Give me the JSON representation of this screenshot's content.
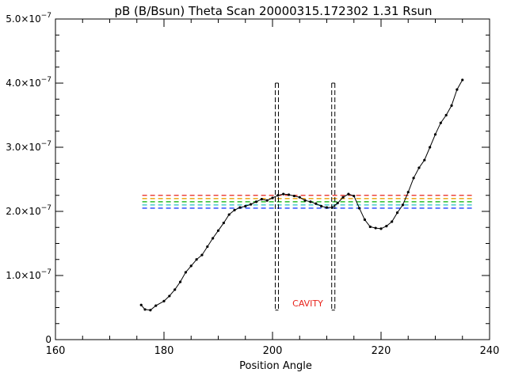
{
  "chart_data": {
    "type": "line",
    "title": "pB (B/Bsun) Theta Scan 20000315.172302 1.31 Rsun",
    "xlabel": "Position Angle",
    "ylabel": "",
    "xlim": [
      160,
      240
    ],
    "ylim": [
      0,
      5e-07
    ],
    "x_ticks": [
      {
        "value": 160,
        "label": "160"
      },
      {
        "value": 180,
        "label": "180"
      },
      {
        "value": 200,
        "label": "200"
      },
      {
        "value": 220,
        "label": "220"
      },
      {
        "value": 240,
        "label": "240"
      }
    ],
    "y_ticks": [
      {
        "value": 0,
        "mant": "0",
        "exp": ""
      },
      {
        "value": 1e-07,
        "mant": "1.0×10",
        "exp": "−7"
      },
      {
        "value": 2e-07,
        "mant": "2.0×10",
        "exp": "−7"
      },
      {
        "value": 3e-07,
        "mant": "3.0×10",
        "exp": "−7"
      },
      {
        "value": 4e-07,
        "mant": "4.0×10",
        "exp": "−7"
      },
      {
        "value": 5e-07,
        "mant": "5.0×10",
        "exp": "−7"
      }
    ],
    "grid": false,
    "series": [
      {
        "x": [
          175.8,
          176.5,
          177.5,
          178.5,
          180,
          181,
          182,
          183,
          184,
          185,
          186,
          187,
          188,
          189,
          190,
          191,
          192,
          193,
          194,
          195,
          196,
          197,
          198,
          199,
          200,
          201,
          202,
          203,
          204,
          205,
          206,
          207,
          208,
          209,
          210,
          211,
          212,
          213,
          214,
          215,
          216,
          217,
          218,
          219,
          220,
          221,
          222,
          223,
          224,
          225,
          226,
          227,
          228,
          229,
          230,
          231,
          232,
          233,
          234,
          235
        ],
        "y": [
          5.4e-08,
          4.7e-08,
          4.6e-08,
          5.3e-08,
          6e-08,
          6.8e-08,
          7.8e-08,
          9e-08,
          1.05e-07,
          1.15e-07,
          1.25e-07,
          1.32e-07,
          1.45e-07,
          1.58e-07,
          1.7e-07,
          1.82e-07,
          1.95e-07,
          2.02e-07,
          2.06e-07,
          2.08e-07,
          2.11e-07,
          2.15e-07,
          2.19e-07,
          2.17e-07,
          2.21e-07,
          2.25e-07,
          2.27e-07,
          2.26e-07,
          2.24e-07,
          2.22e-07,
          2.17e-07,
          2.15e-07,
          2.12e-07,
          2.08e-07,
          2.06e-07,
          2.06e-07,
          2.13e-07,
          2.22e-07,
          2.27e-07,
          2.24e-07,
          2.05e-07,
          1.87e-07,
          1.76e-07,
          1.74e-07,
          1.73e-07,
          1.77e-07,
          1.84e-07,
          1.98e-07,
          2.1e-07,
          2.3e-07,
          2.52e-07,
          2.68e-07,
          2.8e-07,
          3e-07,
          3.2e-07,
          3.38e-07,
          3.5e-07,
          3.65e-07,
          3.9e-07,
          4.05e-07
        ],
        "color": "#000000"
      }
    ],
    "reference_levels": [
      {
        "y": 2.25e-07,
        "x_start": 176,
        "x_end": 237,
        "color": "#e8231b"
      },
      {
        "y": 2.2e-07,
        "x_start": 176,
        "x_end": 237,
        "color": "#e8a000"
      },
      {
        "y": 2.15e-07,
        "x_start": 176,
        "x_end": 237,
        "color": "#00b000"
      },
      {
        "y": 2.1e-07,
        "x_start": 176,
        "x_end": 237,
        "color": "#20c0c0"
      },
      {
        "y": 2.05e-07,
        "x_start": 176,
        "x_end": 237,
        "color": "#2040ff"
      }
    ],
    "cavity_bounds": {
      "x_left": 200.8,
      "x_right": 211.2,
      "y_bottom": 4.6e-08,
      "y_top": 4e-07
    },
    "annotations": [
      {
        "text": "CAVITY",
        "x": 206.5,
        "y": 5.2e-08,
        "color": "#e8231b"
      }
    ]
  }
}
